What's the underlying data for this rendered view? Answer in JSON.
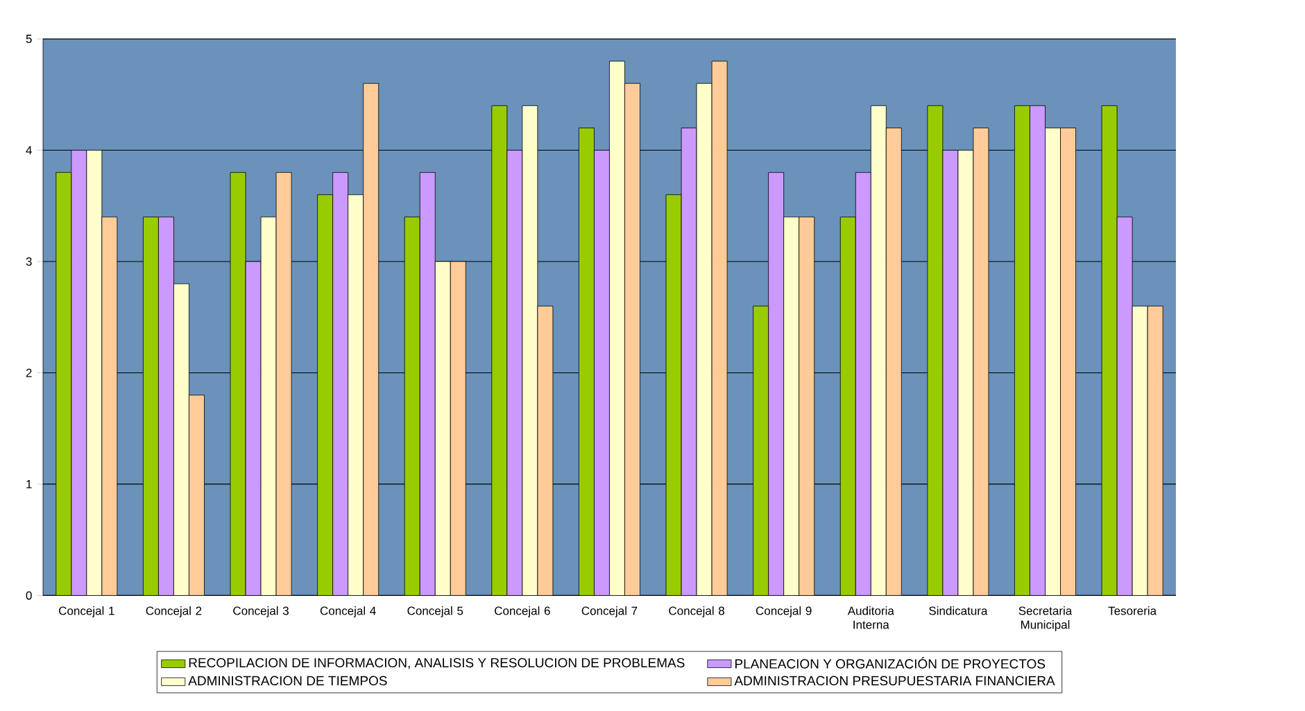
{
  "chart_data": {
    "type": "bar",
    "categories": [
      "Concejal 1",
      "Concejal 2",
      "Concejal 3",
      "Concejal 4",
      "Concejal 5",
      "Concejal 6",
      "Concejal 7",
      "Concejal 8",
      "Concejal 9",
      "Auditoria Interna",
      "Sindicatura",
      "Secretaria Municipal",
      "Tesoreria"
    ],
    "series": [
      {
        "name": "RECOPILACION DE INFORMACION, ANALISIS Y RESOLUCION DE PROBLEMAS",
        "color": "#99cc00",
        "values": [
          3.8,
          3.4,
          3.8,
          3.6,
          3.4,
          4.4,
          4.2,
          3.6,
          2.6,
          3.4,
          4.4,
          4.4,
          4.4
        ]
      },
      {
        "name": "PLANEACION Y ORGANIZACIÓN DE PROYECTOS",
        "color": "#cc99ff",
        "values": [
          4.0,
          3.4,
          3.0,
          3.8,
          3.8,
          4.0,
          4.0,
          4.2,
          3.8,
          3.8,
          4.0,
          4.4,
          3.4
        ]
      },
      {
        "name": "ADMINISTRACION DE TIEMPOS",
        "color": "#ffffcc",
        "values": [
          4.0,
          2.8,
          3.4,
          3.6,
          3.0,
          4.4,
          4.8,
          4.6,
          3.4,
          4.4,
          4.0,
          4.2,
          2.6
        ]
      },
      {
        "name": "ADMINISTRACION PRESUPUESTARIA FINANCIERA",
        "color": "#ffcc99",
        "values": [
          3.4,
          1.8,
          3.8,
          4.6,
          3.0,
          2.6,
          4.6,
          4.8,
          3.4,
          4.2,
          4.2,
          4.2,
          2.6
        ]
      }
    ],
    "ylim": [
      0,
      5
    ],
    "yticks": [
      0,
      1,
      2,
      3,
      4,
      5
    ],
    "grid": "y",
    "legend": "bottom"
  }
}
